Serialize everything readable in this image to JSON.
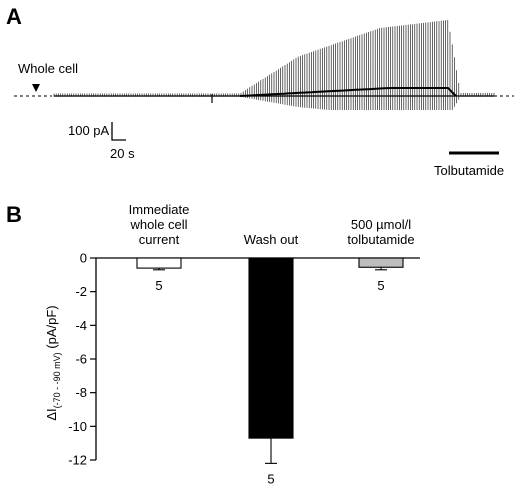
{
  "panels": {
    "a_letter": "A",
    "b_letter": "B"
  },
  "trace_panel": {
    "whole_cell_label": "Whole cell",
    "scale_current_label": "100 pA",
    "scale_time_label": "20 s",
    "drug_label": "Tolbutamide"
  },
  "chart_data": {
    "type": "bar",
    "categories": [
      [
        "Immediate",
        "whole cell",
        "current"
      ],
      [
        "Wash out"
      ],
      [
        "500 µmol/l",
        "tolbutamide"
      ]
    ],
    "values": [
      -0.6,
      -10.7,
      -0.55
    ],
    "errors": [
      0.1,
      1.5,
      0.15
    ],
    "n_labels": [
      "5",
      "5",
      "5"
    ],
    "bar_colors": [
      "#ffffff",
      "#000000",
      "#bdbdbd"
    ],
    "ylabel_parts": [
      "ΔI",
      "(-70 - -90 mV)",
      " (pA/pF)"
    ],
    "ylim": [
      -12,
      0
    ],
    "yticks": [
      0,
      -2,
      -4,
      -6,
      -8,
      -10,
      -12
    ],
    "grid": false
  }
}
